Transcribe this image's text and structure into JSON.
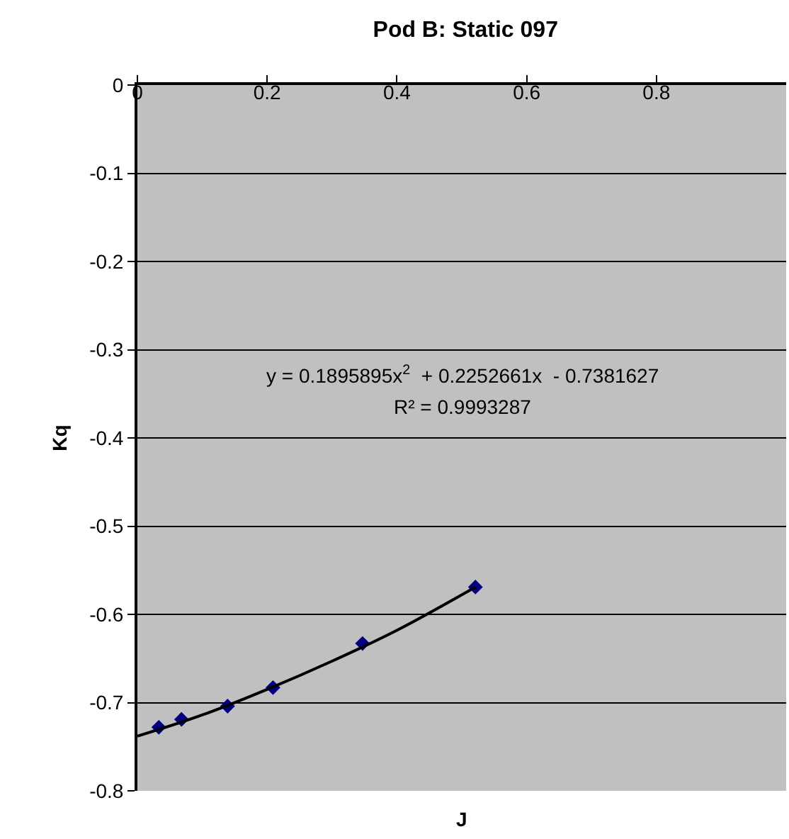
{
  "chart_data": {
    "type": "scatter",
    "title": "Pod B: Static 097",
    "xlabel": "J",
    "ylabel": "Kq",
    "series": [
      {
        "color": "#000080",
        "marker": "diamond",
        "x": [
          0.033,
          0.068,
          0.139,
          0.209,
          0.347,
          0.521
        ],
        "values": [
          -0.728,
          -0.719,
          -0.704,
          -0.683,
          -0.633,
          -0.569
        ]
      },
      {
        "type": "line",
        "color": "#000000",
        "marker": "none",
        "line_style": "solid",
        "x": [
          0,
          0.1,
          0.2,
          0.3,
          0.4,
          0.521
        ],
        "values": [
          -0.738,
          -0.714,
          -0.685,
          -0.653,
          -0.618,
          -0.569
        ]
      }
    ],
    "annotations": [
      "y = 0.1895895x$^{2}$  + 0.2252661x  - 0.7381627",
      "R² = 0.9993287"
    ],
    "xlim": [
      0,
      1
    ],
    "xticks": [
      0,
      0.2,
      0.4,
      0.6,
      0.8
    ],
    "ylim": [
      -0.8,
      0
    ],
    "yticks": [
      0,
      -0.1,
      -0.2,
      -0.3,
      -0.4,
      -0.5,
      -0.6,
      -0.7,
      -0.8
    ],
    "grid": "y"
  }
}
